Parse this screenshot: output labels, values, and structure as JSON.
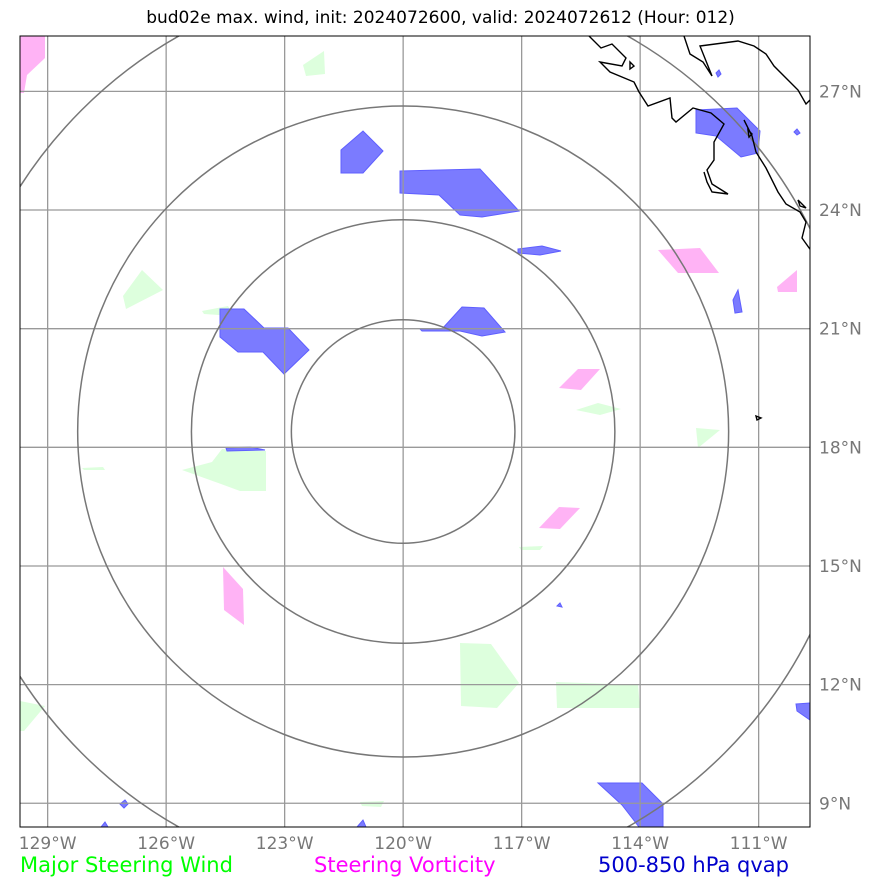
{
  "title": "bud02e max. wind, init: 2024072600, valid: 2024072612 (Hour: 012)",
  "map": {
    "lon_range": [
      -129.7,
      -109.7
    ],
    "lat_range": [
      8.4,
      28.4
    ],
    "lon_ticks": [
      {
        "value": -129,
        "label": "129°W"
      },
      {
        "value": -126,
        "label": "126°W"
      },
      {
        "value": -123,
        "label": "123°W"
      },
      {
        "value": -120,
        "label": "120°W"
      },
      {
        "value": -117,
        "label": "117°W"
      },
      {
        "value": -114,
        "label": "114°W"
      },
      {
        "value": -111,
        "label": "111°W"
      }
    ],
    "lat_ticks": [
      {
        "value": 9,
        "label": "9°N"
      },
      {
        "value": 12,
        "label": "12°N"
      },
      {
        "value": 15,
        "label": "15°N"
      },
      {
        "value": 18,
        "label": "18°N"
      },
      {
        "value": 21,
        "label": "21°N"
      },
      {
        "value": 24,
        "label": "24°N"
      },
      {
        "value": 27,
        "label": "27°N"
      }
    ],
    "storm_center": {
      "lon": -120.0,
      "lat": 18.4
    },
    "range_rings_deg": [
      2.83,
      5.36,
      8.24,
      11.51
    ]
  },
  "colors": {
    "wind": "#00ff00",
    "vorticity": "#ff00ff",
    "qvap": "#0000cc",
    "wind_fill": "#ddffdd",
    "vort_fill": "#ffb3f5",
    "qvap_fill": "#7b7bff"
  },
  "legend": {
    "wind": "Major Steering Wind",
    "vorticity": "Steering Vorticity",
    "qvap": "500-850 hPa qvap"
  }
}
